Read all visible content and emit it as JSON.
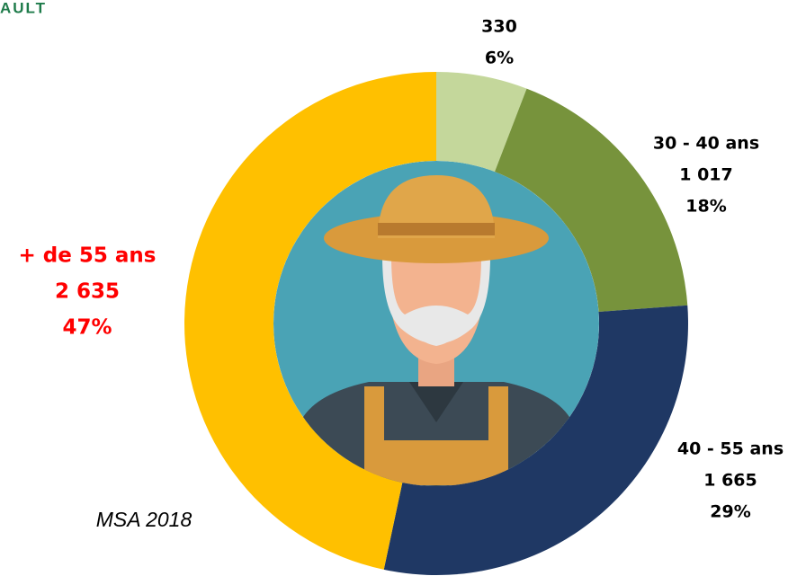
{
  "logo_text": "AULT",
  "source": "MSA 2018",
  "chart_data": {
    "type": "donut",
    "categories": [
      null,
      "30 - 40 ans",
      "40 - 55 ans",
      "+ de 55 ans"
    ],
    "values": [
      330,
      1017,
      1665,
      2635
    ],
    "value_labels": [
      "330",
      "1 017",
      "1 665",
      "2 635"
    ],
    "shares": [
      6,
      18,
      29,
      47
    ],
    "share_labels": [
      "6%",
      "18%",
      "29%",
      "47%"
    ],
    "colors": [
      "#c4d79b",
      "#77933c",
      "#1f3864",
      "#ffc000"
    ],
    "label_colors": [
      "#000000",
      "#000000",
      "#000000",
      "#ff0000"
    ]
  }
}
